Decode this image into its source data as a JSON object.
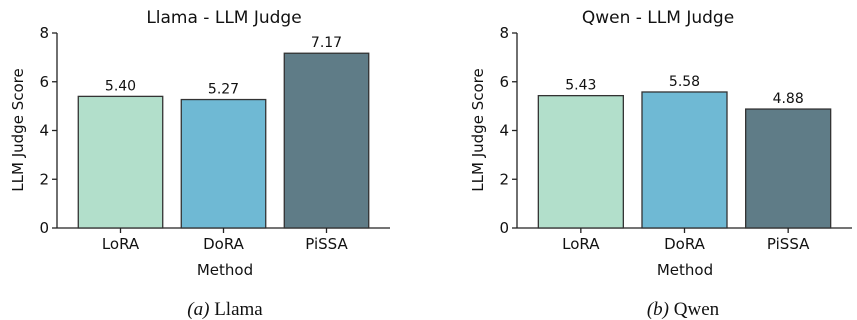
{
  "chart_data": [
    {
      "type": "bar",
      "title": "Llama - LLM Judge",
      "xlabel": "Method",
      "ylabel": "LLM Judge Score",
      "categories": [
        "LoRA",
        "DoRA",
        "PiSSA"
      ],
      "values": [
        5.4,
        5.27,
        7.17
      ],
      "data_labels": [
        "5.40",
        "5.27",
        "7.17"
      ],
      "colors": [
        "#b2dfcb",
        "#6fb9d4",
        "#5f7c87"
      ],
      "ylim": [
        0,
        8
      ],
      "yticks": [
        0,
        2,
        4,
        6,
        8
      ],
      "grid": false,
      "caption_letter": "(a)",
      "caption_text": "Llama"
    },
    {
      "type": "bar",
      "title": "Qwen - LLM Judge",
      "xlabel": "Method",
      "ylabel": "LLM Judge Score",
      "categories": [
        "LoRA",
        "DoRA",
        "PiSSA"
      ],
      "values": [
        5.43,
        5.58,
        4.88
      ],
      "data_labels": [
        "5.43",
        "5.58",
        "4.88"
      ],
      "colors": [
        "#b2dfcb",
        "#6fb9d4",
        "#5f7c87"
      ],
      "ylim": [
        0,
        8
      ],
      "yticks": [
        0,
        2,
        4,
        6,
        8
      ],
      "grid": false,
      "caption_letter": "(b)",
      "caption_text": "Qwen"
    }
  ]
}
